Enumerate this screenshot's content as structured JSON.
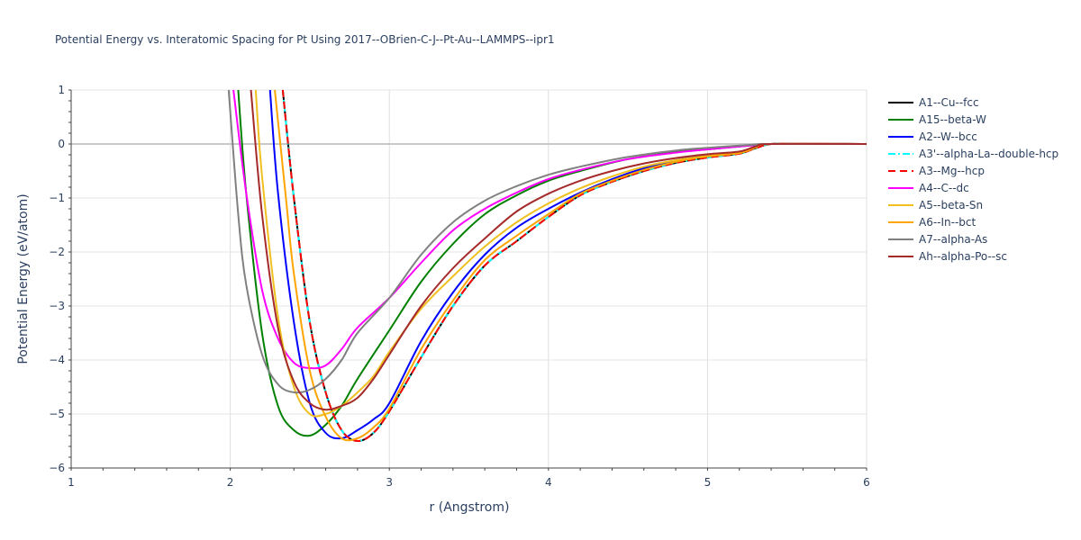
{
  "chart_data": {
    "type": "line",
    "title": "Potential Energy vs. Interatomic Spacing for Pt Using 2017--OBrien-C-J--Pt-Au--LAMMPS--ipr1",
    "xlabel": "r (Angstrom)",
    "ylabel": "Potential Energy (eV/atom)",
    "xlim": [
      1,
      6
    ],
    "ylim": [
      -6,
      1
    ],
    "xticks": [
      1,
      2,
      3,
      4,
      5,
      6
    ],
    "yticks": [
      1,
      0,
      -1,
      -2,
      -3,
      -4,
      -5,
      -6
    ],
    "xtick_labels": [
      "1",
      "2",
      "3",
      "4",
      "5",
      "6"
    ],
    "ytick_labels": [
      "1",
      "0",
      "−1",
      "−2",
      "−3",
      "−4",
      "−5",
      "−6"
    ],
    "grid": true,
    "legend_position": "right",
    "series": [
      {
        "name": "A1--Cu--fcc",
        "color": "#000000",
        "dash": "solid",
        "x": [
          2.33,
          2.4,
          2.5,
          2.6,
          2.7,
          2.8,
          2.9,
          3.0,
          3.2,
          3.4,
          3.6,
          3.8,
          4.0,
          4.2,
          4.4,
          4.6,
          4.8,
          5.0,
          5.2,
          5.3,
          5.4,
          5.6,
          6.0
        ],
        "y": [
          1.0,
          -1.0,
          -3.3,
          -4.6,
          -5.3,
          -5.5,
          -5.35,
          -4.95,
          -3.95,
          -3.0,
          -2.25,
          -1.8,
          -1.35,
          -0.95,
          -0.7,
          -0.5,
          -0.35,
          -0.25,
          -0.18,
          -0.08,
          0.0,
          0.0,
          0.0
        ]
      },
      {
        "name": "A15--beta-W",
        "color": "#008000",
        "dash": "solid",
        "x": [
          2.05,
          2.1,
          2.2,
          2.3,
          2.4,
          2.5,
          2.6,
          2.7,
          2.8,
          3.0,
          3.2,
          3.4,
          3.6,
          3.8,
          4.0,
          4.2,
          4.5,
          4.8,
          5.0,
          5.3,
          5.4,
          6.0
        ],
        "y": [
          1.0,
          -0.9,
          -3.5,
          -4.85,
          -5.3,
          -5.4,
          -5.2,
          -4.85,
          -4.35,
          -3.45,
          -2.55,
          -1.85,
          -1.3,
          -0.95,
          -0.68,
          -0.5,
          -0.28,
          -0.15,
          -0.1,
          -0.02,
          0.0,
          0.0
        ]
      },
      {
        "name": "A2--W--bcc",
        "color": "#0000ff",
        "dash": "solid",
        "x": [
          2.25,
          2.3,
          2.4,
          2.5,
          2.6,
          2.7,
          2.8,
          2.9,
          3.0,
          3.2,
          3.4,
          3.6,
          3.8,
          4.0,
          4.2,
          4.4,
          4.6,
          4.8,
          5.0,
          5.2,
          5.3,
          5.4,
          6.0
        ],
        "y": [
          1.0,
          -0.9,
          -3.3,
          -4.8,
          -5.35,
          -5.45,
          -5.3,
          -5.1,
          -4.8,
          -3.65,
          -2.75,
          -2.05,
          -1.55,
          -1.2,
          -0.9,
          -0.65,
          -0.45,
          -0.3,
          -0.2,
          -0.15,
          -0.05,
          0.0,
          0.0
        ]
      },
      {
        "name": "A3'--alpha-La--double-hcp",
        "color": "#00ffff",
        "dash": "dashdot",
        "x": [
          2.33,
          2.4,
          2.5,
          2.6,
          2.7,
          2.8,
          2.9,
          3.0,
          3.2,
          3.4,
          3.6,
          3.8,
          4.0,
          4.2,
          4.4,
          4.6,
          4.8,
          5.0,
          5.2,
          5.3,
          5.4,
          5.6,
          6.0
        ],
        "y": [
          1.0,
          -1.0,
          -3.3,
          -4.6,
          -5.3,
          -5.5,
          -5.35,
          -4.95,
          -3.95,
          -3.0,
          -2.25,
          -1.8,
          -1.35,
          -0.95,
          -0.7,
          -0.5,
          -0.35,
          -0.25,
          -0.18,
          -0.08,
          0.0,
          0.0,
          0.0
        ]
      },
      {
        "name": "A3--Mg--hcp",
        "color": "#ff0000",
        "dash": "dash",
        "x": [
          2.33,
          2.4,
          2.5,
          2.6,
          2.7,
          2.8,
          2.9,
          3.0,
          3.2,
          3.4,
          3.6,
          3.8,
          4.0,
          4.2,
          4.4,
          4.6,
          4.8,
          5.0,
          5.2,
          5.3,
          5.4,
          5.6,
          6.0
        ],
        "y": [
          1.0,
          -1.0,
          -3.3,
          -4.6,
          -5.3,
          -5.5,
          -5.35,
          -4.95,
          -3.95,
          -3.0,
          -2.25,
          -1.8,
          -1.35,
          -0.95,
          -0.7,
          -0.5,
          -0.35,
          -0.25,
          -0.18,
          -0.08,
          0.0,
          0.0,
          0.0
        ]
      },
      {
        "name": "A4--C--dc",
        "color": "#ff00ff",
        "dash": "solid",
        "x": [
          2.02,
          2.1,
          2.2,
          2.3,
          2.4,
          2.5,
          2.6,
          2.7,
          2.8,
          3.0,
          3.2,
          3.4,
          3.6,
          3.8,
          4.0,
          4.2,
          4.5,
          4.8,
          5.0,
          5.3,
          5.4,
          6.0
        ],
        "y": [
          1.0,
          -0.9,
          -2.7,
          -3.6,
          -4.05,
          -4.15,
          -4.1,
          -3.8,
          -3.4,
          -2.85,
          -2.2,
          -1.6,
          -1.2,
          -0.9,
          -0.65,
          -0.48,
          -0.28,
          -0.16,
          -0.1,
          -0.02,
          0.0,
          0.0
        ]
      },
      {
        "name": "A5--beta-Sn",
        "color": "#f0c020",
        "dash": "solid",
        "x": [
          2.16,
          2.2,
          2.3,
          2.4,
          2.5,
          2.6,
          2.7,
          2.8,
          2.9,
          3.0,
          3.2,
          3.4,
          3.6,
          3.8,
          4.0,
          4.2,
          4.4,
          4.6,
          4.8,
          5.0,
          5.2,
          5.3,
          5.4,
          6.0
        ],
        "y": [
          1.0,
          -0.6,
          -3.2,
          -4.5,
          -5.0,
          -5.0,
          -4.85,
          -4.6,
          -4.3,
          -3.85,
          -3.05,
          -2.45,
          -1.9,
          -1.45,
          -1.1,
          -0.82,
          -0.6,
          -0.42,
          -0.3,
          -0.22,
          -0.16,
          -0.06,
          0.0,
          0.0
        ]
      },
      {
        "name": "A6--In--bct",
        "color": "#ffa500",
        "dash": "solid",
        "x": [
          2.28,
          2.35,
          2.4,
          2.5,
          2.6,
          2.7,
          2.8,
          2.9,
          3.0,
          3.2,
          3.4,
          3.6,
          3.8,
          4.0,
          4.2,
          4.4,
          4.6,
          4.8,
          5.0,
          5.2,
          5.3,
          5.4,
          6.0
        ],
        "y": [
          1.0,
          -1.0,
          -2.4,
          -4.2,
          -5.05,
          -5.45,
          -5.45,
          -5.25,
          -4.9,
          -3.8,
          -2.9,
          -2.15,
          -1.7,
          -1.3,
          -0.92,
          -0.68,
          -0.48,
          -0.33,
          -0.23,
          -0.17,
          -0.07,
          0.0,
          0.0
        ]
      },
      {
        "name": "A7--alpha-As",
        "color": "#808080",
        "dash": "solid",
        "x": [
          1.99,
          2.05,
          2.1,
          2.2,
          2.3,
          2.4,
          2.5,
          2.6,
          2.7,
          2.8,
          3.0,
          3.2,
          3.4,
          3.6,
          3.8,
          4.0,
          4.2,
          4.5,
          4.8,
          5.0,
          5.3,
          5.4,
          6.0
        ],
        "y": [
          1.0,
          -1.3,
          -2.6,
          -3.9,
          -4.45,
          -4.6,
          -4.55,
          -4.35,
          -4.0,
          -3.5,
          -2.85,
          -2.05,
          -1.45,
          -1.05,
          -0.78,
          -0.57,
          -0.42,
          -0.24,
          -0.12,
          -0.07,
          -0.01,
          0.0,
          0.0
        ]
      },
      {
        "name": "Ah--alpha-Po--sc",
        "color": "#a52a2a",
        "dash": "solid",
        "x": [
          2.13,
          2.2,
          2.3,
          2.4,
          2.5,
          2.6,
          2.7,
          2.8,
          2.9,
          3.0,
          3.2,
          3.4,
          3.6,
          3.8,
          4.0,
          4.2,
          4.4,
          4.6,
          4.8,
          5.0,
          5.2,
          5.3,
          5.4,
          6.0
        ],
        "y": [
          1.0,
          -1.3,
          -3.4,
          -4.4,
          -4.8,
          -4.92,
          -4.85,
          -4.7,
          -4.35,
          -3.9,
          -3.0,
          -2.3,
          -1.75,
          -1.25,
          -0.92,
          -0.68,
          -0.5,
          -0.36,
          -0.26,
          -0.19,
          -0.14,
          -0.05,
          0.0,
          0.0
        ]
      }
    ]
  }
}
